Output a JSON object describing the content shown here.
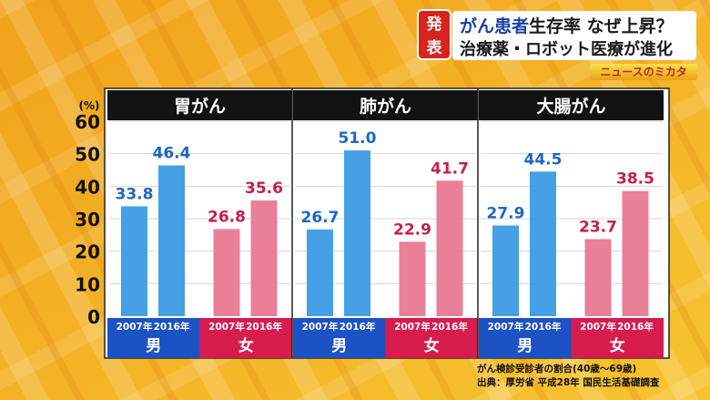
{
  "header": {
    "badge_line1": "発",
    "badge_line2": "表",
    "title_line1_prefix": "がん患者",
    "title_line1_rest": "生存率 なぜ上昇？",
    "title_line2": "治療薬・ロボット医療が進化",
    "corner_label": "ニュースのミカタ"
  },
  "footer": {
    "note": "がん検診受診者の割合(40歳〜69歳)",
    "source": "出典：厚労省 平成28年 国民生活基礎調査"
  },
  "colors": {
    "male_bar": "#45a0e6",
    "female_bar": "#ea7f98",
    "male_value": "#1e66c4",
    "female_value": "#c51f4d",
    "male_band": "#1d52c4",
    "female_band": "#d61d4e",
    "panel_title_bg": "#121212"
  },
  "chart_data": {
    "type": "bar",
    "ylabel": "(%)",
    "ylim": [
      0,
      60
    ],
    "yticks": [
      0,
      10,
      20,
      30,
      40,
      50,
      60
    ],
    "categories": [
      "2007年",
      "2016年"
    ],
    "groups": [
      "男",
      "女"
    ],
    "panels": [
      {
        "title": "胃がん",
        "series": [
          {
            "name": "男",
            "values": [
              33.8,
              46.4
            ]
          },
          {
            "name": "女",
            "values": [
              26.8,
              35.6
            ]
          }
        ]
      },
      {
        "title": "肺がん",
        "series": [
          {
            "name": "男",
            "values": [
              26.7,
              51.0
            ]
          },
          {
            "name": "女",
            "values": [
              22.9,
              41.7
            ]
          }
        ]
      },
      {
        "title": "大腸がん",
        "series": [
          {
            "name": "男",
            "values": [
              27.9,
              44.5
            ]
          },
          {
            "name": "女",
            "values": [
              23.7,
              38.5
            ]
          }
        ]
      }
    ]
  }
}
